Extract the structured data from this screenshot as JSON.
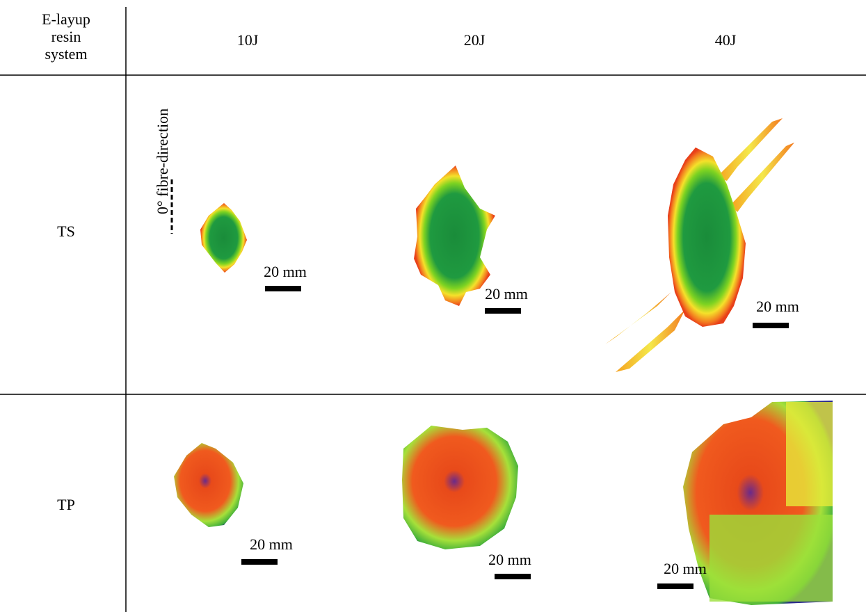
{
  "header": {
    "corner": [
      "E-layup",
      "resin",
      "system"
    ],
    "columns": [
      "10J",
      "20J",
      "40J"
    ]
  },
  "rows": [
    {
      "label": "TS",
      "scale_bars": [
        "20 mm",
        "20 mm",
        "20 mm"
      ]
    },
    {
      "label": "TP",
      "scale_bars": [
        "20 mm",
        "20 mm",
        "20 mm"
      ]
    }
  ],
  "annotation": "0° fibre-direction"
}
